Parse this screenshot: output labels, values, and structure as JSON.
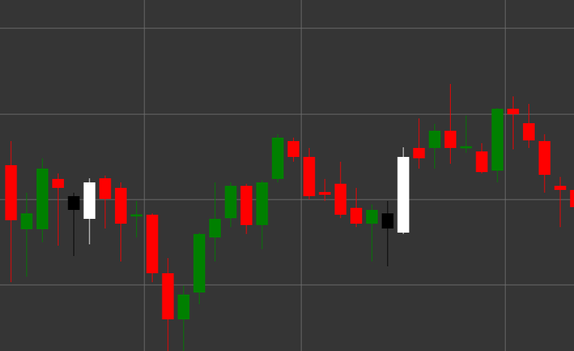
{
  "colors": {
    "background": "#353535",
    "grid": "#6e6e6e",
    "bullish": "#008000",
    "bearish": "#ff0000",
    "bullish_highlight": "#ffffff",
    "bearish_highlight": "#000000"
  },
  "chart_data": {
    "type": "candlestick",
    "title": "",
    "xlabel": "",
    "ylabel": "",
    "grid": true,
    "ylim": [
      0,
      510
    ],
    "xlim": [
      0,
      36
    ],
    "hgrid": [
      469,
      344,
      220,
      96
    ],
    "vgrid": [
      8.5,
      18.5,
      31.5
    ],
    "candles": [
      {
        "o": 270,
        "h": 305,
        "l": 100,
        "c": 190,
        "kind": "bear"
      },
      {
        "o": 177,
        "h": 230,
        "l": 108,
        "c": 200,
        "kind": "bull"
      },
      {
        "o": 177,
        "h": 280,
        "l": 158,
        "c": 265,
        "kind": "bull"
      },
      {
        "o": 250,
        "h": 258,
        "l": 153,
        "c": 237,
        "kind": "bear"
      },
      {
        "o": 225,
        "h": 230,
        "l": 138,
        "c": 205,
        "kind": "bear_hl"
      },
      {
        "o": 192,
        "h": 251,
        "l": 155,
        "c": 245,
        "kind": "bull_hl"
      },
      {
        "o": 251,
        "h": 255,
        "l": 178,
        "c": 221,
        "kind": "bear"
      },
      {
        "o": 237,
        "h": 245,
        "l": 130,
        "c": 185,
        "kind": "bear"
      },
      {
        "o": 196,
        "h": 218,
        "l": 165,
        "c": 198,
        "kind": "bull"
      },
      {
        "o": 198,
        "h": 200,
        "l": 100,
        "c": 113,
        "kind": "bear"
      },
      {
        "o": 113,
        "h": 135,
        "l": 0,
        "c": 46,
        "kind": "bear"
      },
      {
        "o": 46,
        "h": 95,
        "l": 0,
        "c": 82,
        "kind": "bull"
      },
      {
        "o": 85,
        "h": 172,
        "l": 68,
        "c": 170,
        "kind": "bull"
      },
      {
        "o": 165,
        "h": 245,
        "l": 130,
        "c": 192,
        "kind": "bull"
      },
      {
        "o": 193,
        "h": 245,
        "l": 180,
        "c": 240,
        "kind": "bull"
      },
      {
        "o": 240,
        "h": 243,
        "l": 170,
        "c": 183,
        "kind": "bear"
      },
      {
        "o": 183,
        "h": 248,
        "l": 148,
        "c": 245,
        "kind": "bull"
      },
      {
        "o": 250,
        "h": 315,
        "l": 245,
        "c": 310,
        "kind": "bull"
      },
      {
        "o": 305,
        "h": 310,
        "l": 275,
        "c": 282,
        "kind": "bear"
      },
      {
        "o": 282,
        "h": 295,
        "l": 220,
        "c": 225,
        "kind": "bear"
      },
      {
        "o": 231,
        "h": 250,
        "l": 218,
        "c": 227,
        "kind": "bear"
      },
      {
        "o": 243,
        "h": 275,
        "l": 193,
        "c": 198,
        "kind": "bear"
      },
      {
        "o": 208,
        "h": 237,
        "l": 180,
        "c": 185,
        "kind": "bear"
      },
      {
        "o": 185,
        "h": 213,
        "l": 130,
        "c": 205,
        "kind": "bull"
      },
      {
        "o": 200,
        "h": 218,
        "l": 123,
        "c": 178,
        "kind": "bear_hl"
      },
      {
        "o": 172,
        "h": 296,
        "l": 170,
        "c": 282,
        "kind": "bull_hl"
      },
      {
        "o": 295,
        "h": 338,
        "l": 265,
        "c": 280,
        "kind": "bear"
      },
      {
        "o": 295,
        "h": 330,
        "l": 265,
        "c": 320,
        "kind": "bull"
      },
      {
        "o": 320,
        "h": 388,
        "l": 272,
        "c": 295,
        "kind": "bear"
      },
      {
        "o": 295,
        "h": 342,
        "l": 288,
        "c": 297,
        "kind": "bull"
      },
      {
        "o": 290,
        "h": 302,
        "l": 258,
        "c": 260,
        "kind": "bear"
      },
      {
        "o": 262,
        "h": 353,
        "l": 245,
        "c": 352,
        "kind": "bull"
      },
      {
        "o": 352,
        "h": 370,
        "l": 293,
        "c": 344,
        "kind": "bear"
      },
      {
        "o": 331,
        "h": 359,
        "l": 295,
        "c": 306,
        "kind": "bear"
      },
      {
        "o": 305,
        "h": 315,
        "l": 230,
        "c": 256,
        "kind": "bear"
      },
      {
        "o": 240,
        "h": 253,
        "l": 180,
        "c": 234,
        "kind": "bear"
      },
      {
        "o": 234,
        "h": 248,
        "l": 168,
        "c": 209,
        "kind": "bear"
      }
    ]
  }
}
